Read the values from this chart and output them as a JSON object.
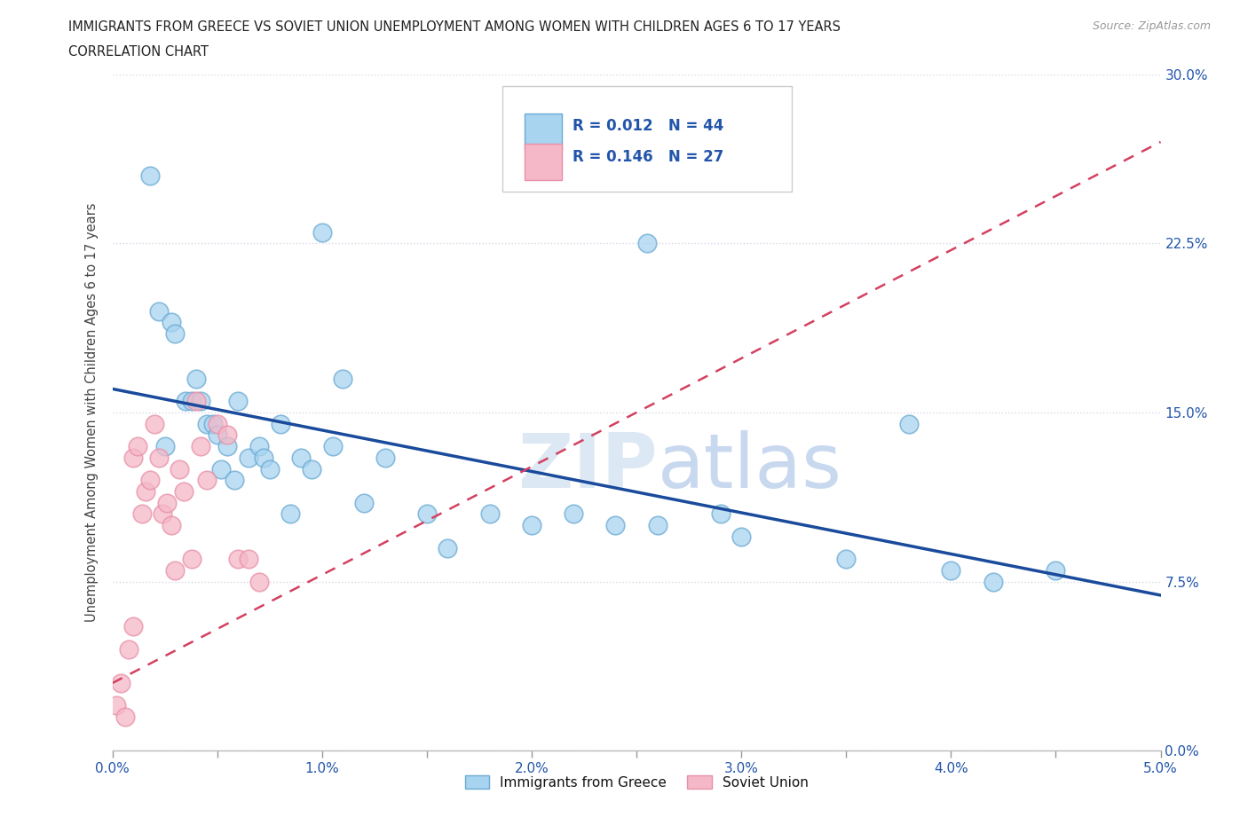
{
  "title_line1": "IMMIGRANTS FROM GREECE VS SOVIET UNION UNEMPLOYMENT AMONG WOMEN WITH CHILDREN AGES 6 TO 17 YEARS",
  "title_line2": "CORRELATION CHART",
  "source": "Source: ZipAtlas.com",
  "ylabel": "Unemployment Among Women with Children Ages 6 to 17 years",
  "xlim": [
    0.0,
    5.0
  ],
  "ylim": [
    0.0,
    30.0
  ],
  "x_ticks": [
    0.0,
    0.5,
    1.0,
    1.5,
    2.0,
    2.5,
    3.0,
    3.5,
    4.0,
    4.5,
    5.0
  ],
  "x_tick_labels": [
    "0.0%",
    "",
    "1.0%",
    "",
    "2.0%",
    "",
    "3.0%",
    "",
    "4.0%",
    "",
    "5.0%"
  ],
  "y_ticks": [
    0.0,
    7.5,
    15.0,
    22.5,
    30.0
  ],
  "y_tick_labels": [
    "0.0%",
    "7.5%",
    "15.0%",
    "22.5%",
    "30.0%"
  ],
  "greece_R": 0.012,
  "greece_N": 44,
  "soviet_R": 0.146,
  "soviet_N": 27,
  "greece_color": "#a8d4f0",
  "greece_edge": "#6aaad4",
  "soviet_color": "#f5b8c8",
  "soviet_edge": "#e890a8",
  "greece_line_color": "#1a4a9b",
  "soviet_line_color": "#d44060",
  "background_color": "#FFFFFF",
  "grid_color": "#d8d8e8",
  "title_color": "#222222",
  "axis_label_color": "#444444",
  "tick_color": "#2255aa",
  "legend_text_color": "#2255aa",
  "watermark_color": "#dde8f5",
  "greece_x": [
    0.18,
    0.22,
    0.28,
    0.3,
    0.35,
    0.38,
    0.4,
    0.42,
    0.45,
    0.48,
    0.5,
    0.52,
    0.55,
    0.58,
    0.6,
    0.65,
    0.7,
    0.72,
    0.75,
    0.8,
    0.85,
    0.9,
    0.95,
    1.0,
    1.05,
    1.1,
    1.2,
    1.3,
    1.5,
    1.6,
    1.8,
    2.0,
    2.2,
    2.4,
    2.55,
    2.6,
    2.9,
    3.0,
    3.5,
    3.8,
    4.0,
    4.2,
    4.5,
    0.25
  ],
  "greece_y": [
    25.5,
    19.5,
    19.0,
    18.5,
    15.5,
    15.5,
    16.5,
    15.5,
    14.5,
    14.5,
    14.0,
    12.5,
    13.5,
    12.0,
    15.5,
    13.0,
    13.5,
    13.0,
    12.5,
    14.5,
    10.5,
    13.0,
    12.5,
    23.0,
    13.5,
    16.5,
    11.0,
    13.0,
    10.5,
    9.0,
    10.5,
    10.0,
    10.5,
    10.0,
    22.5,
    10.0,
    10.5,
    9.5,
    8.5,
    14.5,
    8.0,
    7.5,
    8.0,
    13.5
  ],
  "soviet_x": [
    0.02,
    0.04,
    0.06,
    0.08,
    0.1,
    0.1,
    0.12,
    0.14,
    0.16,
    0.18,
    0.2,
    0.22,
    0.24,
    0.26,
    0.28,
    0.3,
    0.32,
    0.34,
    0.38,
    0.4,
    0.42,
    0.45,
    0.5,
    0.55,
    0.6,
    0.65,
    0.7
  ],
  "soviet_y": [
    2.0,
    3.0,
    1.5,
    4.5,
    5.5,
    13.0,
    13.5,
    10.5,
    11.5,
    12.0,
    14.5,
    13.0,
    10.5,
    11.0,
    10.0,
    8.0,
    12.5,
    11.5,
    8.5,
    15.5,
    13.5,
    12.0,
    14.5,
    14.0,
    8.5,
    8.5,
    7.5
  ]
}
